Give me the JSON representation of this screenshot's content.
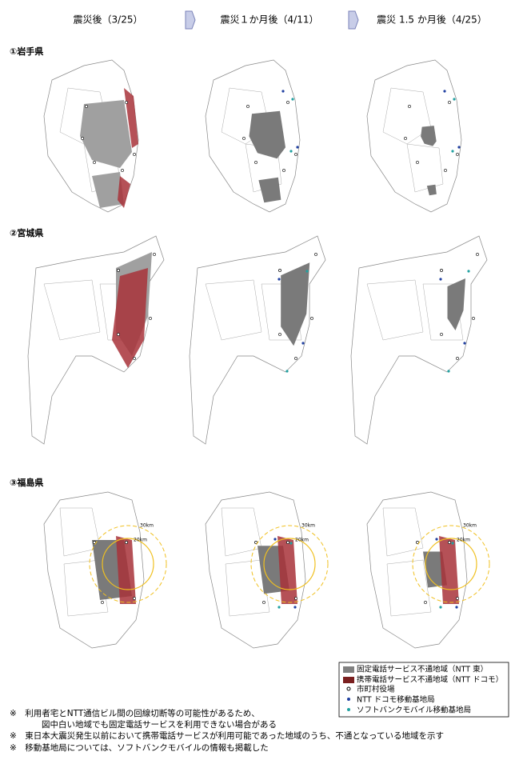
{
  "columns": [
    "震災後（3/25）",
    "震災１か月後（4/11）",
    "震災 1.5 か月後（4/25）"
  ],
  "rows": [
    "①岩手県",
    "②宮城県",
    "③福島県"
  ],
  "circle_labels": [
    "30km",
    "20km"
  ],
  "legend": [
    "固定電話サービス不通地域（NTT 東）",
    "携帯電話サービス不通地域（NTT ドコモ）",
    "市町村役場",
    "NTT ドコモ移動基地局",
    "ソフトバンクモバイル移動基地局"
  ],
  "notes": [
    "※　利用者宅とNTT通信ビル間の回線切断等の可能性があるため、",
    "図中白い地域でも固定電話サービスを利用できない場合がある",
    "※　東日本大震災発生以前において携帯電話サービスが利用可能であった地域のうち、不通となっている地域を示す",
    "※　移動基地局については、ソフトバンクモバイルの情報も掲載した"
  ]
}
